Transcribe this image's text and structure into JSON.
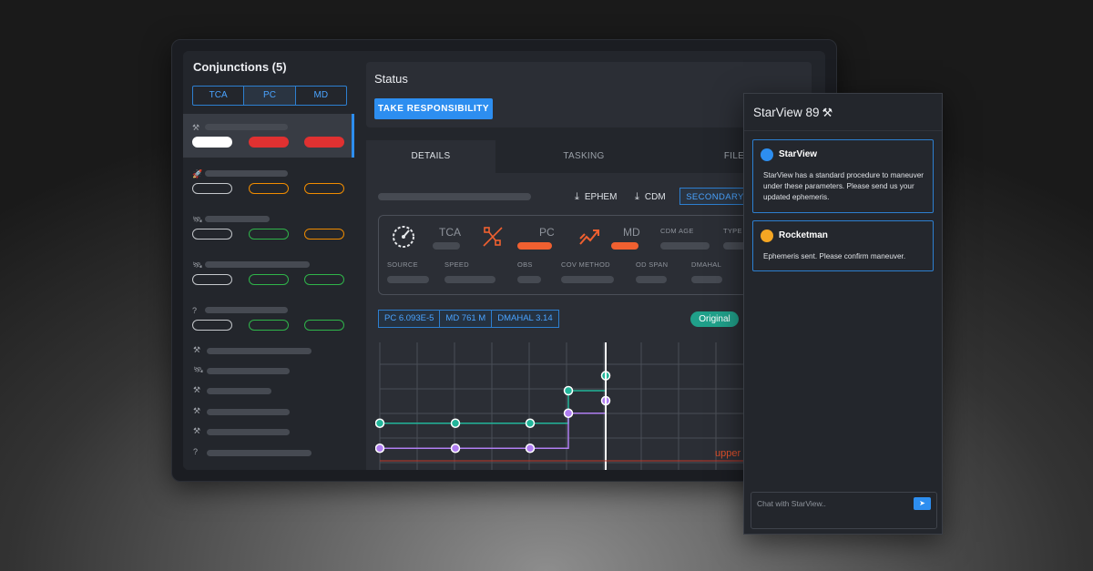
{
  "conjunctions": {
    "title": "Conjunctions (5)",
    "sort_tabs": [
      "TCA",
      "PC",
      "MD"
    ],
    "active_sort": "PC"
  },
  "status": {
    "title": "Status",
    "take_responsibility_label": "TAKE RESPONSIBILITY"
  },
  "detail_tabs": [
    "DETAILS",
    "TASKING",
    "FILE"
  ],
  "actions": {
    "ephem_label": "EPHEM",
    "cdm_label": "CDM",
    "secondary_label": "SECONDARY"
  },
  "summary_labels": {
    "tca": "TCA",
    "pc": "PC",
    "md": "MD",
    "cdm_age": "CDM AGE",
    "type": "TYPE",
    "source": "SOURCE",
    "speed": "SPEED",
    "obs": "OBS",
    "cov_method": "COV METHOD",
    "od_span": "OD SPAN",
    "dmahal": "DMAHAL"
  },
  "chips": [
    "PC 6.093E-5",
    "MD 761 M",
    "DMAHAL 3.14"
  ],
  "original_badge": "Original",
  "chart_data": {
    "type": "line",
    "series": [
      {
        "color": "#22b59a",
        "values": [
          2,
          2,
          2,
          3.3,
          3.9
        ]
      },
      {
        "color": "#b07ef2",
        "values": [
          1,
          1,
          1,
          2.4,
          2.9
        ]
      }
    ],
    "annotation": "upper",
    "annotation_color": "#e0502b"
  },
  "chat": {
    "title": "StarView 89",
    "messages": [
      {
        "sender": "StarView",
        "color": "#2d8ef0",
        "text": "StarView has a standard procedure to maneuver under these parameters. Please send us your updated ephemeris."
      },
      {
        "sender": "Rocketman",
        "color": "#f5a623",
        "text": "Ephemeris sent. Please confirm maneuver."
      }
    ],
    "input_placeholder": "Chat with StarView.."
  },
  "colors": {
    "accent": "#2d8ef0",
    "danger": "#e03131",
    "warning": "#f08c00",
    "success": "#2fb44a",
    "highlight": "#f06030"
  },
  "icons": [
    "tools-icon",
    "rocket-icon",
    "satellite-icon",
    "question-icon",
    "gauge-icon",
    "satellite-crossed-icon",
    "trend-icon",
    "download-icon",
    "send-icon"
  ]
}
